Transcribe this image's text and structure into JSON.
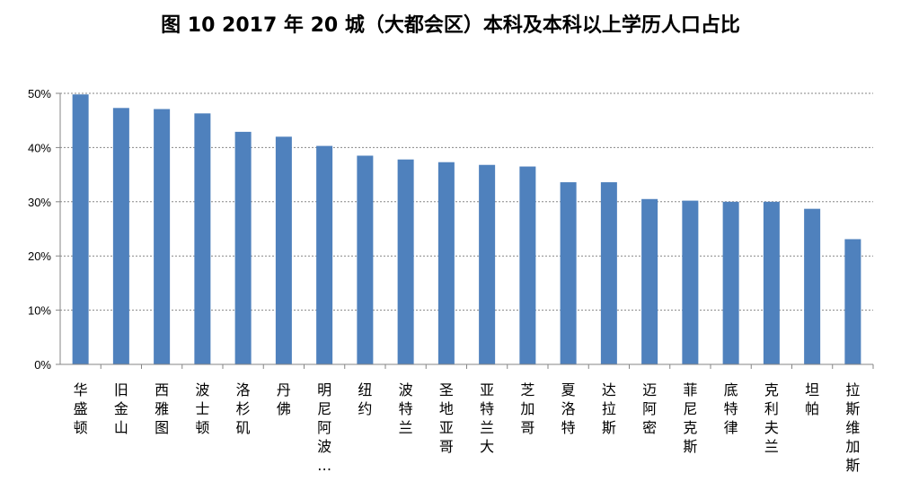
{
  "chart_data": {
    "type": "bar",
    "title": "图 10 2017 年 20 城（大都会区）本科及本科以上学历人口占比",
    "categories": [
      "华盛顿",
      "旧金山",
      "西雅图",
      "波士顿",
      "洛杉矶",
      "丹佛",
      "明尼阿波…",
      "纽约",
      "波特兰",
      "圣地亚哥",
      "亚特兰大",
      "芝加哥",
      "夏洛特",
      "达拉斯",
      "迈阿密",
      "菲尼克斯",
      "底特律",
      "克利夫兰",
      "坦帕",
      "拉斯维加斯"
    ],
    "values": [
      49.8,
      47.3,
      47.1,
      46.3,
      42.9,
      42.0,
      40.3,
      38.5,
      37.8,
      37.3,
      36.8,
      36.5,
      33.6,
      33.6,
      30.5,
      30.2,
      30.0,
      30.0,
      28.7,
      23.1
    ],
    "ylim": [
      0,
      50
    ],
    "yticks": [
      "0%",
      "10%",
      "20%",
      "30%",
      "40%",
      "50%"
    ],
    "grid": true,
    "bar_color": "#4F81BD"
  }
}
